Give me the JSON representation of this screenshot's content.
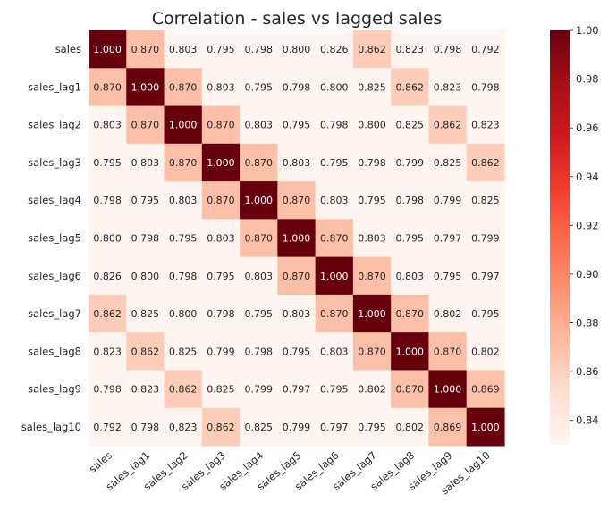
{
  "chart_data": {
    "type": "heatmap",
    "title": "Correlation - sales vs lagged sales",
    "xlabel": "",
    "ylabel": "",
    "categories": [
      "sales",
      "sales_lag1",
      "sales_lag2",
      "sales_lag3",
      "sales_lag4",
      "sales_lag5",
      "sales_lag6",
      "sales_lag7",
      "sales_lag8",
      "sales_lag9",
      "sales_lag10"
    ],
    "matrix": [
      [
        1.0,
        0.87,
        0.803,
        0.795,
        0.798,
        0.8,
        0.826,
        0.862,
        0.823,
        0.798,
        0.792
      ],
      [
        0.87,
        1.0,
        0.87,
        0.803,
        0.795,
        0.798,
        0.8,
        0.825,
        0.862,
        0.823,
        0.798
      ],
      [
        0.803,
        0.87,
        1.0,
        0.87,
        0.803,
        0.795,
        0.798,
        0.8,
        0.825,
        0.862,
        0.823
      ],
      [
        0.795,
        0.803,
        0.87,
        1.0,
        0.87,
        0.803,
        0.795,
        0.798,
        0.799,
        0.825,
        0.862
      ],
      [
        0.798,
        0.795,
        0.803,
        0.87,
        1.0,
        0.87,
        0.803,
        0.795,
        0.798,
        0.799,
        0.825
      ],
      [
        0.8,
        0.798,
        0.795,
        0.803,
        0.87,
        1.0,
        0.87,
        0.803,
        0.795,
        0.797,
        0.799
      ],
      [
        0.826,
        0.8,
        0.798,
        0.795,
        0.803,
        0.87,
        1.0,
        0.87,
        0.803,
        0.795,
        0.797
      ],
      [
        0.862,
        0.825,
        0.8,
        0.798,
        0.795,
        0.803,
        0.87,
        1.0,
        0.87,
        0.802,
        0.795
      ],
      [
        0.823,
        0.862,
        0.825,
        0.799,
        0.798,
        0.795,
        0.803,
        0.87,
        1.0,
        0.87,
        0.802
      ],
      [
        0.798,
        0.823,
        0.862,
        0.825,
        0.799,
        0.797,
        0.795,
        0.802,
        0.87,
        1.0,
        0.869
      ],
      [
        0.792,
        0.798,
        0.823,
        0.862,
        0.825,
        0.799,
        0.797,
        0.795,
        0.802,
        0.869,
        1.0
      ]
    ],
    "value_format": "3 decimals",
    "colormap": "Reds",
    "color_range": [
      0.83,
      1.0
    ],
    "colorbar_ticks": [
      1.0,
      0.98,
      0.96,
      0.94,
      0.92,
      0.9,
      0.88,
      0.86,
      0.84
    ],
    "colorbar_tick_labels": [
      "1.00",
      "0.98",
      "0.96",
      "0.94",
      "0.92",
      "0.90",
      "0.88",
      "0.86",
      "0.84"
    ],
    "colorbar_position": "right",
    "x_tick_rotation": "45 degrees",
    "grid": false,
    "colors": {
      "low": "#fff5f0",
      "high": "#67000d",
      "text_dark": "#262626",
      "text_light": "#ffffff"
    }
  }
}
